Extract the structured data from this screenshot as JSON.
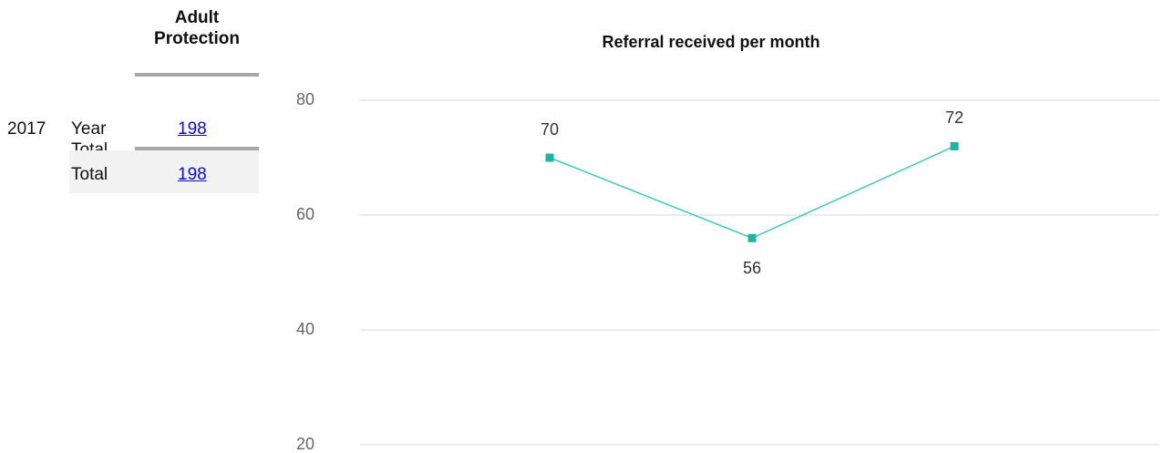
{
  "table": {
    "header": "Adult Protection",
    "rows": [
      {
        "year": "2017",
        "label": "Year Total",
        "value": "198"
      },
      {
        "label": "Total",
        "value": "198"
      }
    ]
  },
  "chart_data": {
    "type": "line",
    "title": "Referral received per month",
    "categories": [
      null,
      null,
      null
    ],
    "series": [
      {
        "name": null,
        "color": "#3cc9c0",
        "marker_color": "#1fb3a6",
        "values": [
          70,
          56,
          72
        ]
      }
    ],
    "ylim": [
      20,
      80
    ],
    "yticks": [
      20,
      40,
      60,
      80
    ],
    "grid": true
  }
}
